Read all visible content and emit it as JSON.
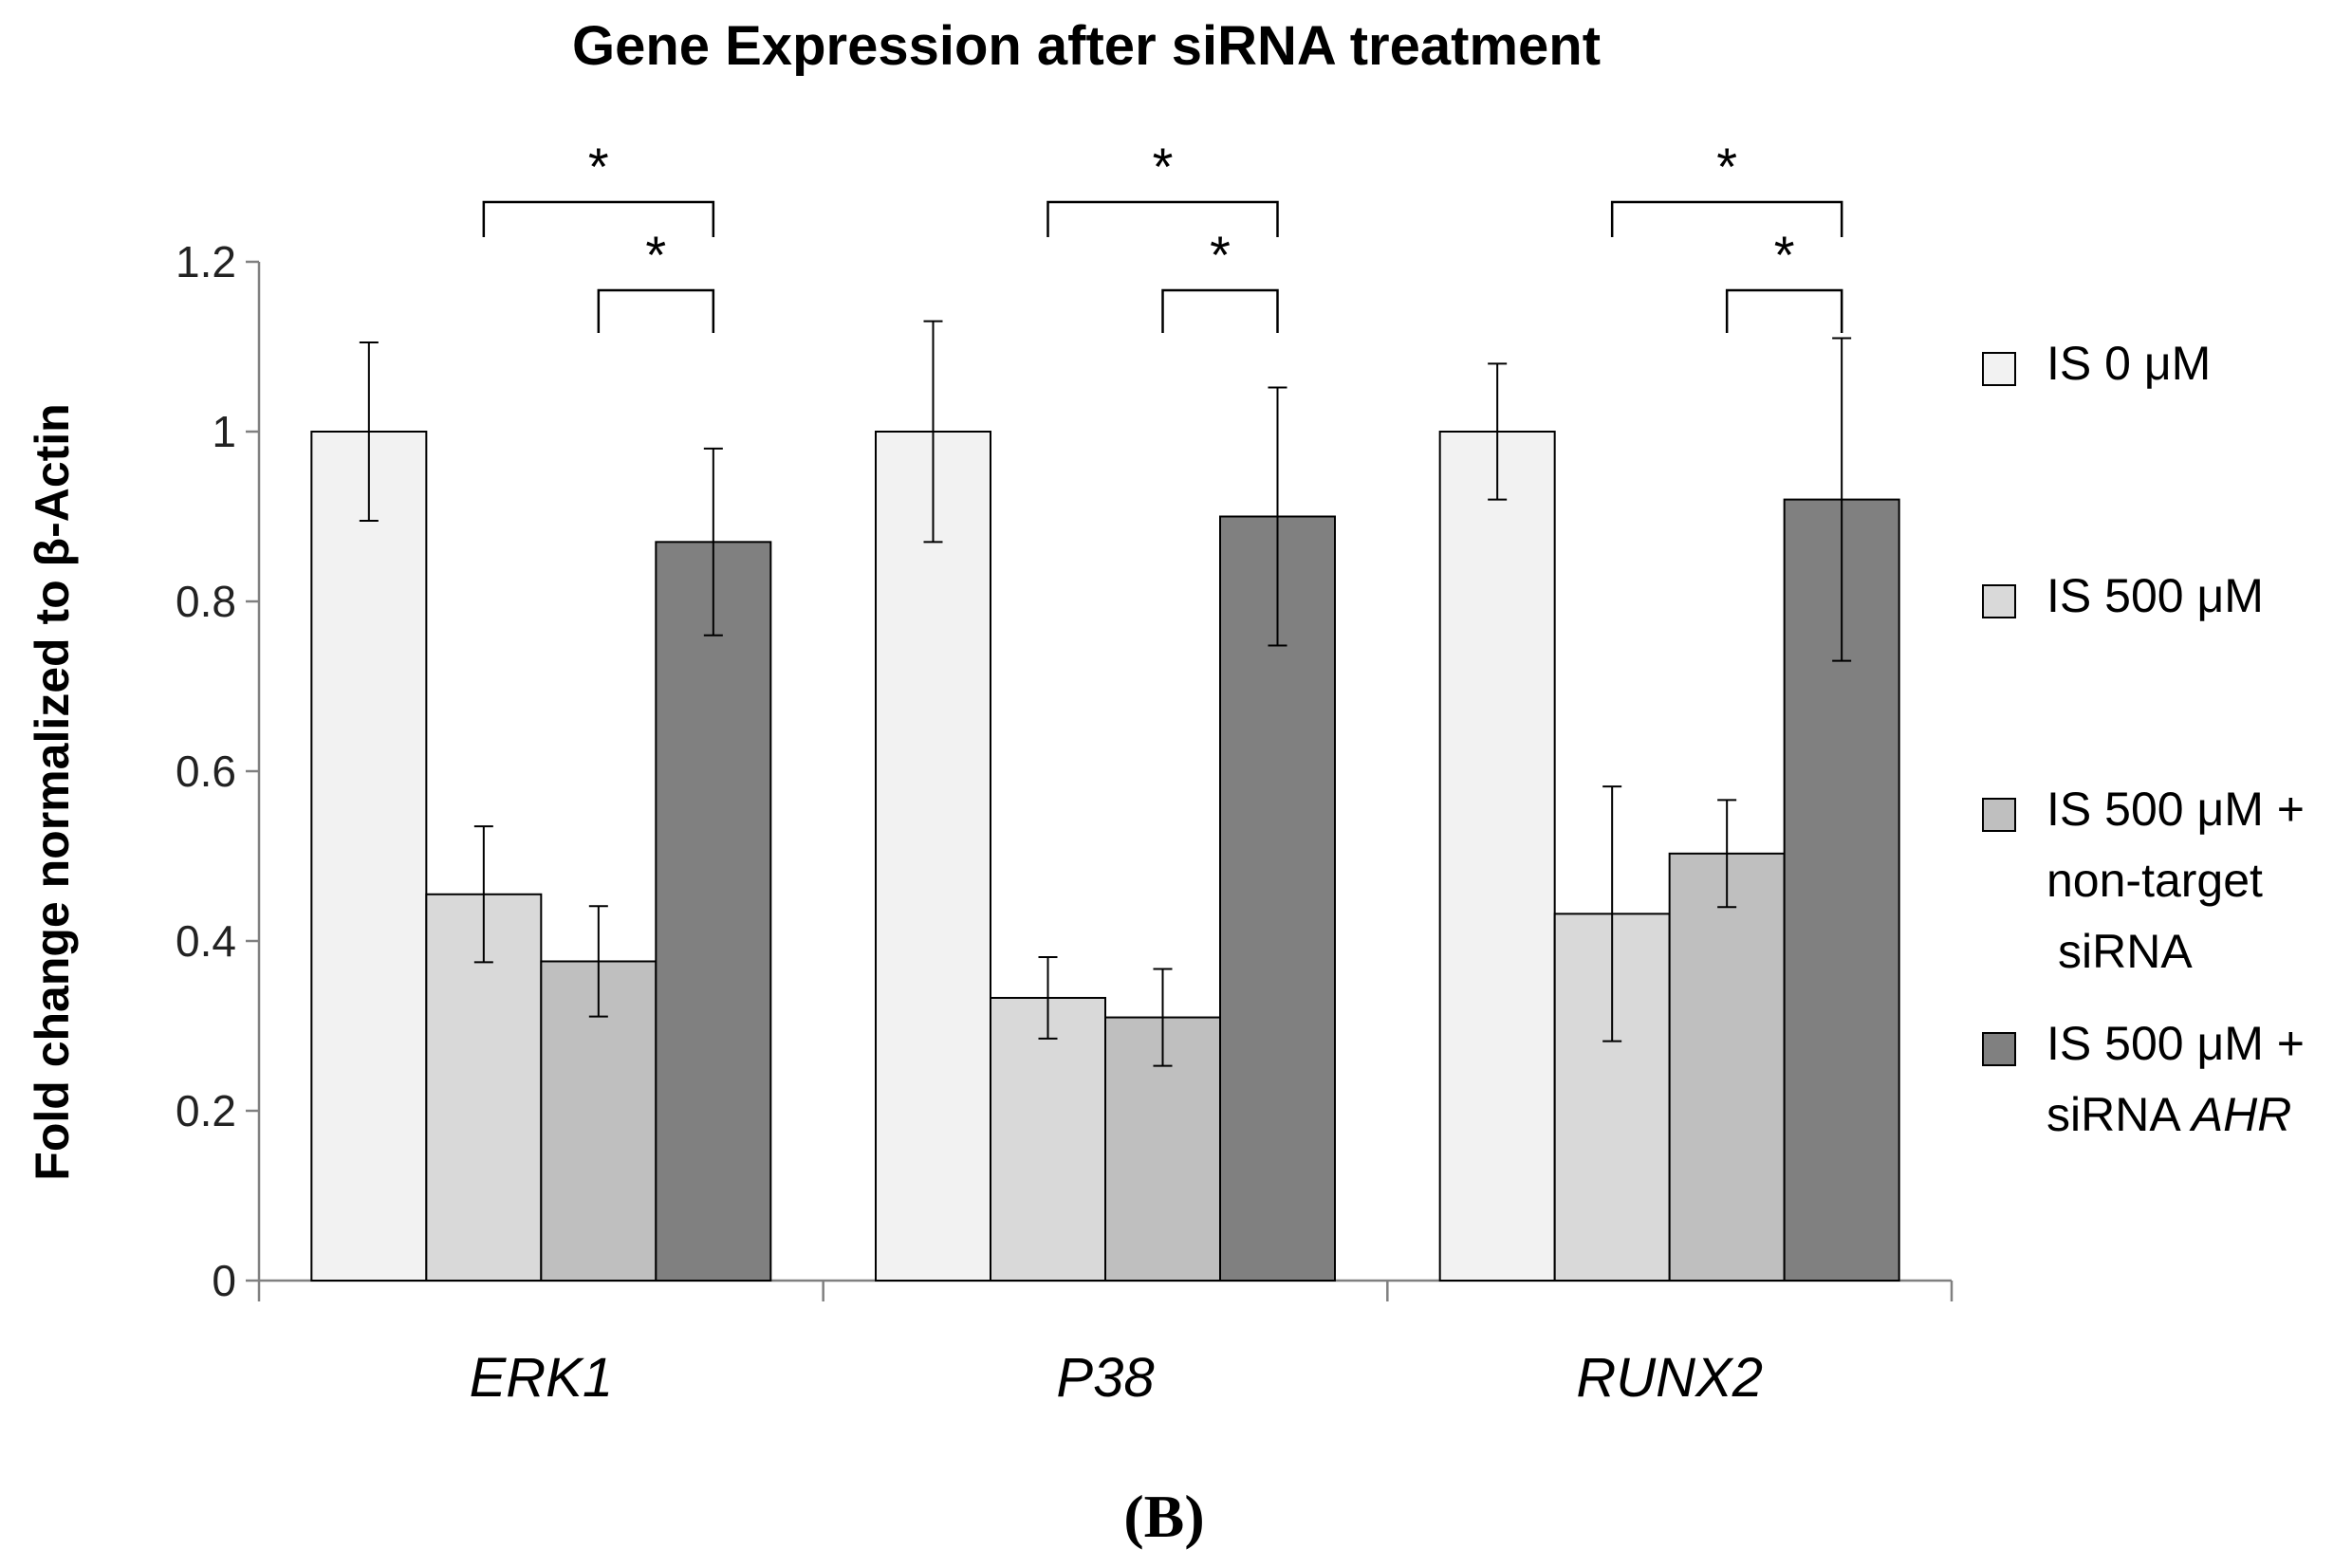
{
  "chart_data": {
    "type": "bar",
    "title": "Gene Expression after siRNA treatment",
    "xlabel": "",
    "ylabel": "Fold change normalized to β-Actin",
    "ylim": [
      0,
      1.2
    ],
    "yticks": [
      "0",
      "0.2",
      "0.4",
      "0.6",
      "0.8",
      "1",
      "1.2"
    ],
    "ytick_values": [
      0,
      0.2,
      0.4,
      0.6,
      0.8,
      1.0,
      1.2
    ],
    "categories": [
      "ERK1",
      "P38",
      "RUNX2"
    ],
    "series": [
      {
        "name": "IS 0 μM",
        "color": "#f2f2f2",
        "values": [
          1.0,
          1.0,
          1.0
        ],
        "errors": [
          0.105,
          0.13,
          0.08
        ]
      },
      {
        "name": "IS 500 μM",
        "color": "#d9d9d9",
        "values": [
          0.455,
          0.333,
          0.432
        ],
        "errors": [
          0.08,
          0.048,
          0.15
        ]
      },
      {
        "name": "IS 500 μM + non-target siRNA",
        "color": "#bfbfbf",
        "values": [
          0.376,
          0.31,
          0.503
        ],
        "errors": [
          0.065,
          0.057,
          0.063
        ]
      },
      {
        "name": "IS 500 μM + siRNA AHR",
        "color": "#808080",
        "values": [
          0.87,
          0.9,
          0.92
        ],
        "errors": [
          0.11,
          0.152,
          0.19
        ]
      }
    ],
    "legend": {
      "placement": "right",
      "entries": [
        {
          "lines": [
            "IS 0 μM"
          ]
        },
        {
          "lines": [
            "IS 500 μM"
          ]
        },
        {
          "lines": [
            "IS 500 μM +",
            "non-target",
            "siRNA"
          ]
        },
        {
          "lines": [
            "IS 500 μM +",
            "siRNA AHR"
          ],
          "italic_word": "AHR"
        }
      ]
    },
    "significance": [
      {
        "category": 0,
        "from_series": 1,
        "to_series": 3,
        "label": "*"
      },
      {
        "category": 0,
        "from_series": 2,
        "to_series": 3,
        "label": "*"
      },
      {
        "category": 1,
        "from_series": 1,
        "to_series": 3,
        "label": "*"
      },
      {
        "category": 1,
        "from_series": 2,
        "to_series": 3,
        "label": "*"
      },
      {
        "category": 2,
        "from_series": 1,
        "to_series": 3,
        "label": "*"
      },
      {
        "category": 2,
        "from_series": 2,
        "to_series": 3,
        "label": "*"
      }
    ],
    "panel_label": "(B)"
  }
}
